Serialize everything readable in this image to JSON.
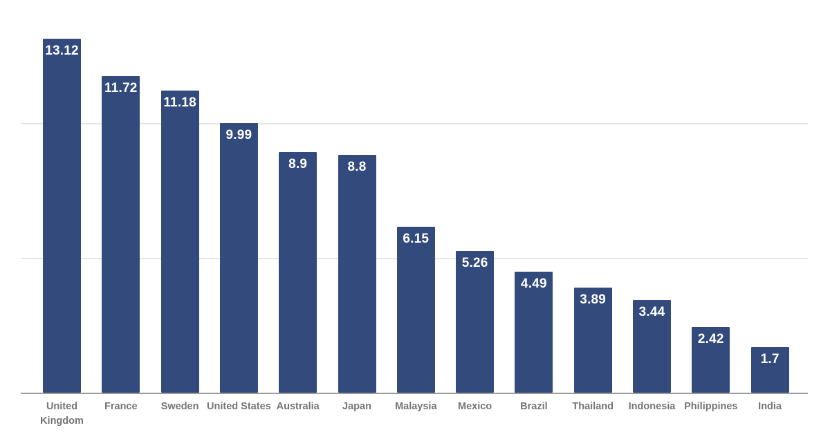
{
  "chart_data": {
    "type": "bar",
    "title": "",
    "xlabel": "",
    "ylabel": "",
    "categories": [
      "United Kingdom",
      "France",
      "Sweden",
      "United States",
      "Australia",
      "Japan",
      "Malaysia",
      "Mexico",
      "Brazil",
      "Thailand",
      "Indonesia",
      "Philippines",
      "India"
    ],
    "values": [
      13.12,
      11.72,
      11.18,
      9.99,
      8.9,
      8.8,
      6.15,
      5.26,
      4.49,
      3.89,
      3.44,
      2.42,
      1.7
    ],
    "value_labels": [
      "13.12",
      "11.72",
      "11.18",
      "9.99",
      "8.9",
      "8.8",
      "6.15",
      "5.26",
      "4.49",
      "3.89",
      "3.44",
      "2.42",
      "1.7"
    ],
    "ylim": [
      0,
      14.55
    ],
    "gridline_values": [
      5,
      10
    ],
    "grid": true,
    "legend_position": "none",
    "value_labels_inside_bars": true,
    "colors": {
      "bar": "#334A7D",
      "value_label": "#FFFFFF",
      "category_label": "#757575",
      "gridline": "#E6E6E6",
      "axis_line": "#9A9A9A",
      "background": "#FFFFFF"
    }
  }
}
